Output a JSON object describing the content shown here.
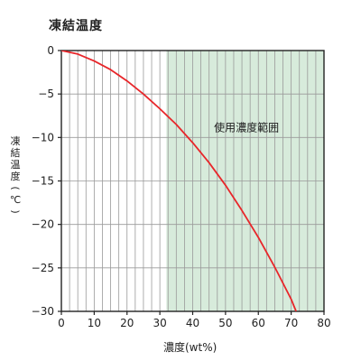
{
  "chart_data": {
    "type": "line",
    "title": "凍結温度",
    "xlabel": "濃度(wt%)",
    "ylabel": "凍結温度(℃)",
    "xlim": [
      0,
      80
    ],
    "ylim": [
      -30,
      0
    ],
    "xticks": [
      0,
      10,
      20,
      30,
      40,
      50,
      60,
      70,
      80
    ],
    "yticks": [
      0,
      -5,
      -10,
      -15,
      -20,
      -25,
      -30
    ],
    "grid": true,
    "series": [
      {
        "color": "#e8262a",
        "x": [
          0,
          5,
          10,
          15,
          20,
          25,
          30,
          35,
          40,
          45,
          50,
          55,
          60,
          65,
          70,
          71.5
        ],
        "y": [
          0,
          -0.4,
          -1.2,
          -2.2,
          -3.5,
          -5.0,
          -6.7,
          -8.5,
          -10.6,
          -12.9,
          -15.5,
          -18.4,
          -21.5,
          -24.9,
          -28.6,
          -30
        ]
      }
    ],
    "shaded_region": {
      "x_range": [
        32,
        80
      ],
      "label": "使用濃度範囲",
      "color": "#d7ebdb"
    }
  }
}
